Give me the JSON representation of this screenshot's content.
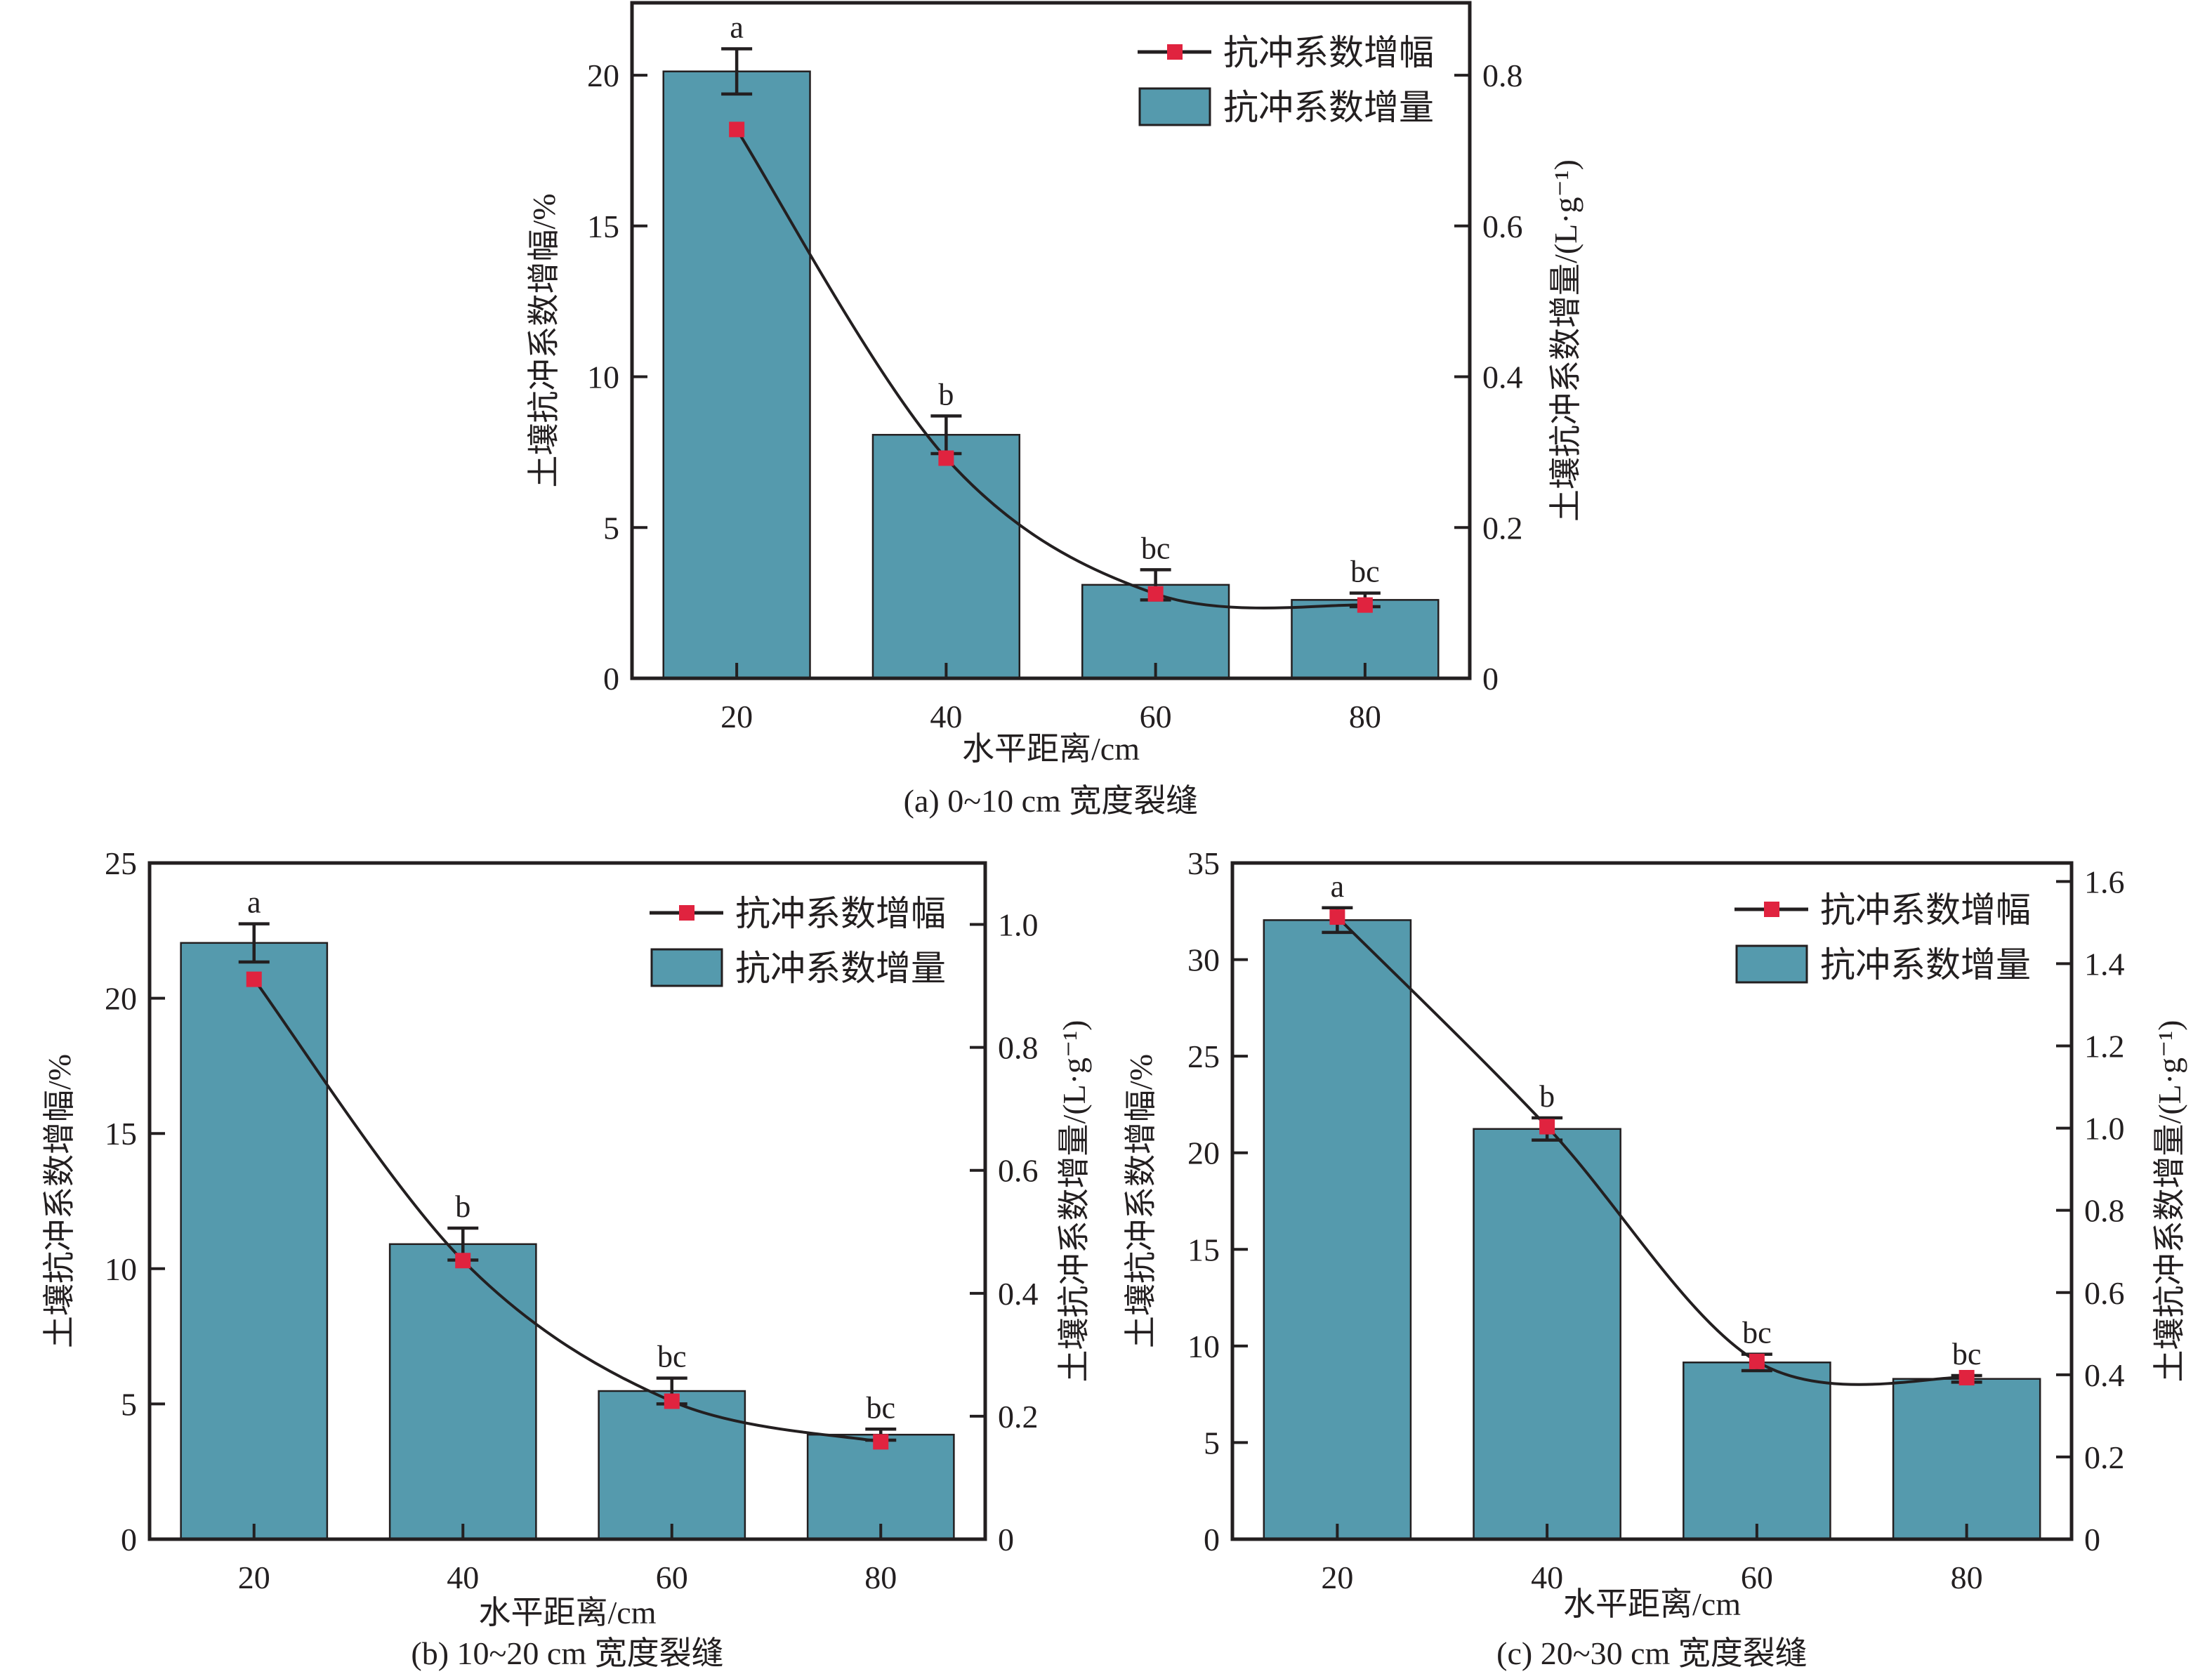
{
  "colors": {
    "bar_fill": "#559aad",
    "marker_fill": "#e0233f",
    "ink": "#231f20"
  },
  "legend": {
    "line_label": "抗冲系数增幅",
    "bar_label": "抗冲系数增量"
  },
  "chart_data": [
    {
      "id": "a",
      "type": "bar+line",
      "caption": "(a) 0~10 cm 宽度裂缝",
      "xlabel": "水平距离/cm",
      "ylabel_left": "土壤抗冲系数增幅/%",
      "ylabel_right": "土壤抗冲系数增量/(L·g⁻¹)",
      "categories": [
        20,
        40,
        60,
        80
      ],
      "xlim": [
        10,
        90
      ],
      "ylim_left": [
        0,
        22.4
      ],
      "ylim_right": [
        0,
        0.896
      ],
      "yticks_left": [
        "0",
        "5",
        "10",
        "15",
        "20"
      ],
      "yticks_right": [
        "0",
        "0.2",
        "0.4",
        "0.6",
        "0.8"
      ],
      "xticks": [
        "20",
        "40",
        "60",
        "80"
      ],
      "legend_position": "top-right",
      "series": [
        {
          "name": "抗冲系数增量",
          "kind": "bar",
          "axis": "right",
          "values": [
            0.805,
            0.323,
            0.124,
            0.104
          ],
          "errors": [
            0.03,
            0.025,
            0.02,
            0.009
          ]
        },
        {
          "name": "抗冲系数增幅",
          "kind": "line",
          "axis": "left",
          "values": [
            18.2,
            7.3,
            2.8,
            2.43
          ]
        }
      ],
      "significance": [
        "a",
        "b",
        "bc",
        "bc"
      ]
    },
    {
      "id": "b",
      "type": "bar+line",
      "caption": "(b) 10~20 cm 宽度裂缝",
      "xlabel": "水平距离/cm",
      "ylabel_left": "土壤抗冲系数增幅/%",
      "ylabel_right": "土壤抗冲系数增量/(L·g⁻¹)",
      "categories": [
        20,
        40,
        60,
        80
      ],
      "xlim": [
        10,
        90
      ],
      "ylim_left": [
        0,
        25
      ],
      "ylim_right": [
        0,
        1.1
      ],
      "yticks_left": [
        "0",
        "5",
        "10",
        "15",
        "20",
        "25"
      ],
      "yticks_right": [
        "0",
        "0.2",
        "0.4",
        "0.6",
        "0.8",
        "1.0"
      ],
      "xticks": [
        "20",
        "40",
        "60",
        "80"
      ],
      "legend_position": "top-right",
      "series": [
        {
          "name": "抗冲系数增量",
          "kind": "bar",
          "axis": "right",
          "values": [
            0.97,
            0.48,
            0.241,
            0.17
          ],
          "errors": [
            0.031,
            0.026,
            0.021,
            0.009
          ]
        },
        {
          "name": "抗冲系数增幅",
          "kind": "line",
          "axis": "left",
          "values": [
            20.7,
            10.3,
            5.1,
            3.6
          ]
        }
      ],
      "significance": [
        "a",
        "b",
        "bc",
        "bc"
      ]
    },
    {
      "id": "c",
      "type": "bar+line",
      "caption": "(c) 20~30 cm 宽度裂缝",
      "xlabel": "水平距离/cm",
      "ylabel_left": "土壤抗冲系数增幅/%",
      "ylabel_right": "土壤抗冲系数增量/(L·g⁻¹)",
      "categories": [
        20,
        40,
        60,
        80
      ],
      "xlim": [
        10,
        90
      ],
      "ylim_left": [
        0,
        35
      ],
      "ylim_right": [
        0,
        1.645
      ],
      "yticks_left": [
        "0",
        "5",
        "10",
        "15",
        "20",
        "25",
        "30",
        "35"
      ],
      "yticks_right": [
        "0",
        "0.2",
        "0.4",
        "0.6",
        "0.8",
        "1.0",
        "1.2",
        "1.4",
        "1.6"
      ],
      "xticks": [
        "20",
        "40",
        "60",
        "80"
      ],
      "legend_position": "top-right",
      "series": [
        {
          "name": "抗冲系数增量",
          "kind": "bar",
          "axis": "right",
          "values": [
            1.506,
            0.998,
            0.43,
            0.39
          ],
          "errors": [
            0.03,
            0.027,
            0.02,
            0.008
          ]
        },
        {
          "name": "抗冲系数增幅",
          "kind": "line",
          "axis": "left",
          "values": [
            32.2,
            21.35,
            9.2,
            8.36
          ]
        }
      ],
      "significance": [
        "a",
        "b",
        "bc",
        "bc"
      ]
    }
  ]
}
